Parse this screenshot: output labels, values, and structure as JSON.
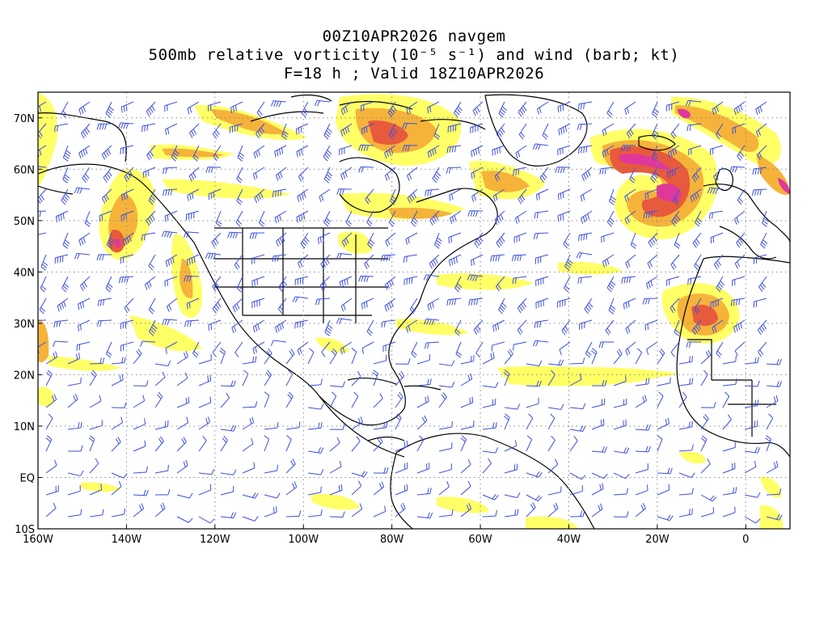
{
  "header": {
    "line1": "00Z10APR2026 navgem",
    "line2": "500mb relative vorticity (10⁻⁵ s⁻¹) and wind (barb; kt)",
    "line3": "F=18 h ; Valid 18Z10APR2026"
  },
  "axes": {
    "lon_labels": [
      "160W",
      "140W",
      "120W",
      "100W",
      "80W",
      "60W",
      "40W",
      "20W",
      "0"
    ],
    "lat_labels": [
      "70N",
      "60N",
      "50N",
      "40N",
      "30N",
      "20N",
      "10N",
      "EQ",
      "10S"
    ],
    "lon_values": [
      -160,
      -140,
      -120,
      -100,
      -80,
      -60,
      -40,
      -20,
      0
    ],
    "lat_values": [
      70,
      60,
      50,
      40,
      30,
      20,
      10,
      0,
      -10
    ],
    "lon_range": [
      -160,
      10
    ],
    "lat_range": [
      -10,
      75
    ],
    "grid": "dotted"
  },
  "colors": {
    "barb": "#3b4fe0",
    "coast": "#000000",
    "vort_levels": [
      "#ffff66",
      "#f7e53a",
      "#f5b33a",
      "#f08a3c",
      "#e85a3c",
      "#e0389a",
      "#f060d8"
    ]
  }
}
